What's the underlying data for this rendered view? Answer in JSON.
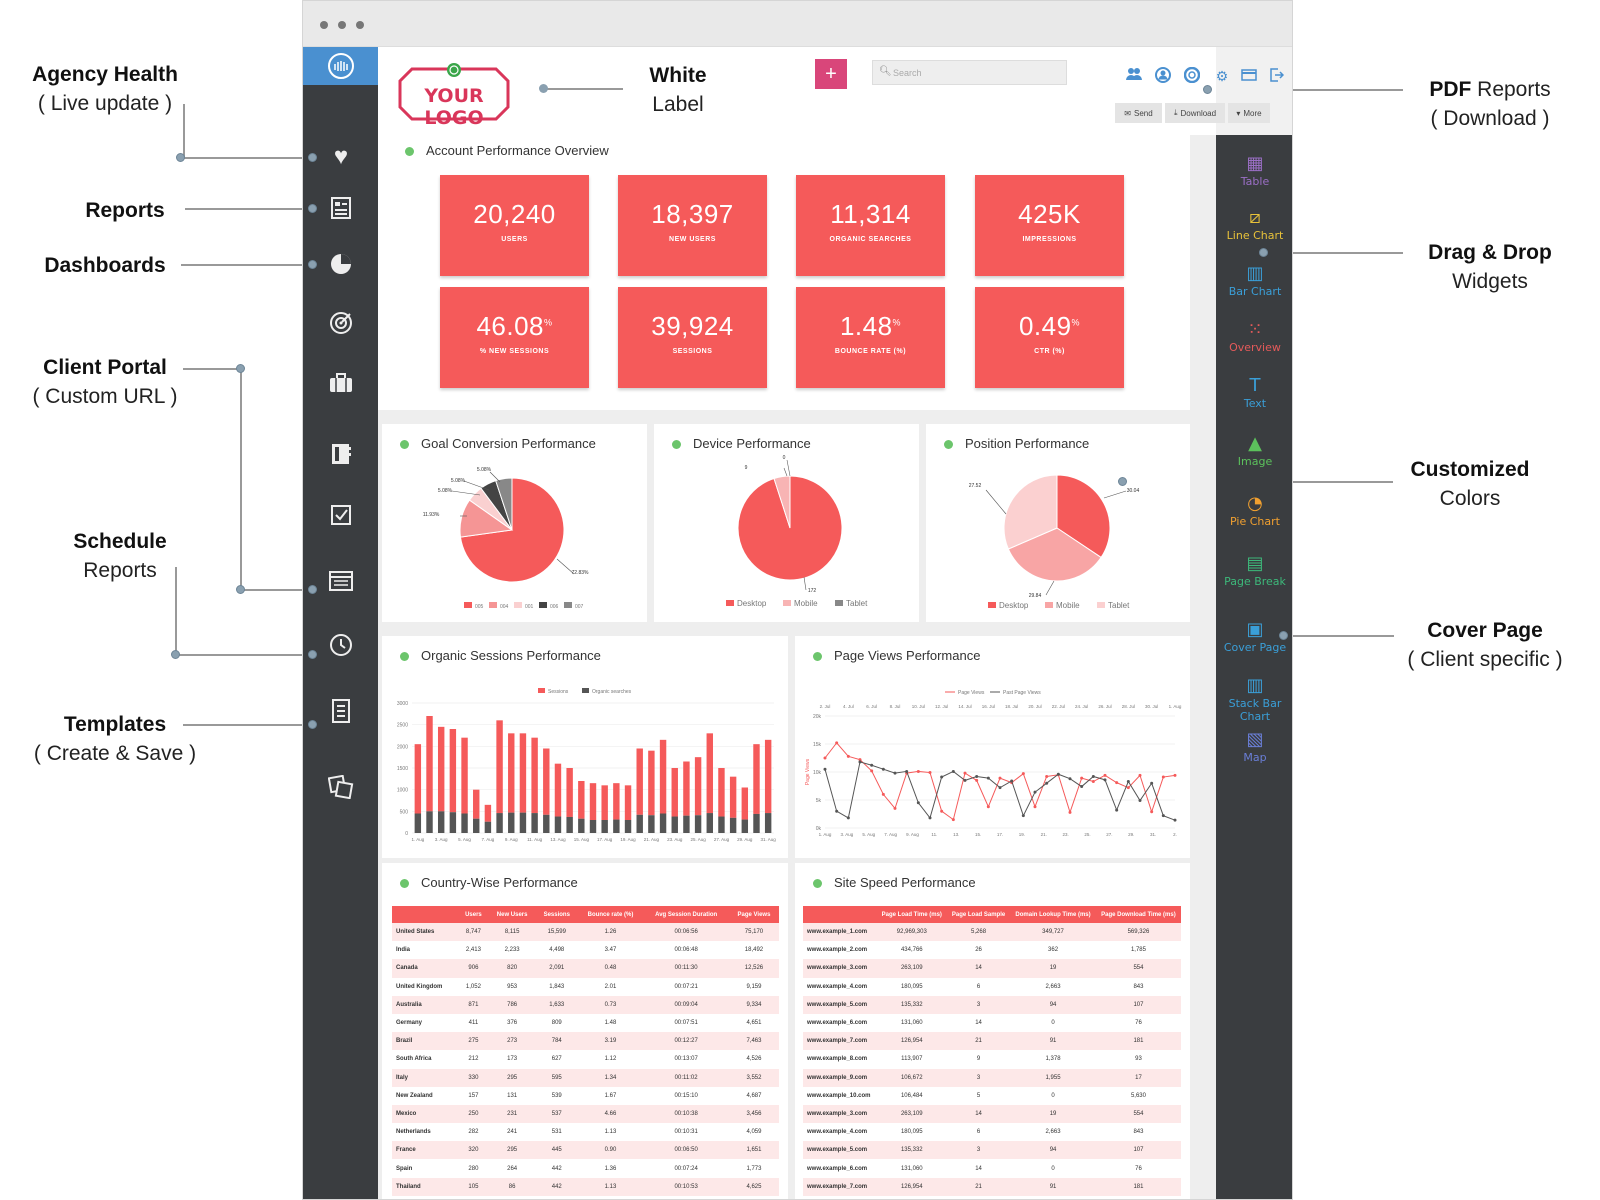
{
  "callouts": {
    "agency_health": {
      "bold": "Agency Health",
      "sub": "( Live update )"
    },
    "reports": {
      "bold": "Reports"
    },
    "dashboards": {
      "bold": "Dashboards"
    },
    "client_portal": {
      "bold": "Client Portal",
      "sub": "( Custom URL )"
    },
    "schedule": {
      "bold": "Schedule",
      "sub": "Reports"
    },
    "templates": {
      "bold": "Templates",
      "sub": "( Create & Save )"
    },
    "white_label": {
      "bold": "White",
      "sub": "Label"
    },
    "pdf_reports": {
      "bold": "PDF",
      "rest": " Reports",
      "sub": "( Download )"
    },
    "drag_drop": {
      "bold": "Drag & Drop",
      "sub": "Widgets"
    },
    "customized": {
      "bold": "Customized",
      "sub": "Colors"
    },
    "cover_page": {
      "bold": "Cover Page",
      "sub": "( Client specific )"
    }
  },
  "header": {
    "logo_text": "YOUR LOGO",
    "add_label": "+",
    "search_placeholder": "Search",
    "send_label": "Send",
    "download_label": "Download",
    "more_label": "More"
  },
  "widgets": [
    "Table",
    "Line Chart",
    "Bar Chart",
    "Overview",
    "Text",
    "Image",
    "Pie Chart",
    "Page Break",
    "Cover Page",
    "Stack Bar Chart",
    "Map"
  ],
  "widget_colors": [
    "#9b6fc6",
    "#e8c23a",
    "#3a9fd8",
    "#e45a5a",
    "#3a9fd8",
    "#5cc15c",
    "#f0a030",
    "#3db87a",
    "#3a9fd8",
    "#3a9fd8",
    "#6a7fd8"
  ],
  "overview": {
    "title": "Account Performance Overview",
    "kpis": [
      {
        "value": "20,240",
        "sup": "",
        "label": "USERS"
      },
      {
        "value": "18,397",
        "sup": "",
        "label": "NEW USERS"
      },
      {
        "value": "11,314",
        "sup": "",
        "label": "ORGANIC SEARCHES"
      },
      {
        "value": "425K",
        "sup": "",
        "label": "IMPRESSIONS"
      },
      {
        "value": "46.08",
        "sup": "%",
        "label": "% NEW SESSIONS"
      },
      {
        "value": "39,924",
        "sup": "",
        "label": "SESSIONS"
      },
      {
        "value": "1.48",
        "sup": "%",
        "label": "BOUNCE RATE (%)"
      },
      {
        "value": "0.49",
        "sup": "%",
        "label": "CTR (%)"
      }
    ]
  },
  "charts": {
    "goal": {
      "title": "Goal Conversion Performance"
    },
    "device": {
      "title": "Device Performance"
    },
    "position": {
      "title": "Position Performance"
    },
    "organic": {
      "title": "Organic Sessions Performance"
    },
    "pageviews": {
      "title": "Page Views Performance"
    }
  },
  "chart_data": [
    {
      "type": "pie",
      "title": "Goal Conversion Performance",
      "labels": [
        "005",
        "004",
        "001",
        "006",
        "007"
      ],
      "values": [
        72.83,
        11.93,
        5.08,
        5.08,
        5.08
      ],
      "value_labels": [
        "72.83%",
        "11.93%",
        "5.08%",
        "5.08%",
        "5.08%"
      ],
      "colors": [
        "#f55a5a",
        "#f59595",
        "#fad0d0",
        "#444444",
        "#888888"
      ],
      "legend": "bottom"
    },
    {
      "type": "pie",
      "title": "Device Performance",
      "labels": [
        "Desktop",
        "Mobile",
        "Tablet"
      ],
      "values": [
        172,
        9,
        0
      ],
      "colors": [
        "#f55a5a",
        "#f8b4b4",
        "#888888"
      ],
      "legend": "bottom"
    },
    {
      "type": "pie",
      "title": "Position Performance",
      "labels": [
        "Desktop",
        "Mobile",
        "Tablet"
      ],
      "values": [
        30.04,
        29.84,
        27.52
      ],
      "colors": [
        "#f55a5a",
        "#f8a5a5",
        "#fbd0d0"
      ],
      "legend": "bottom"
    },
    {
      "type": "bar",
      "title": "Organic Sessions Performance",
      "stacked": true,
      "x_ticks": [
        "1. Aug",
        "3. Aug",
        "5. Aug",
        "7. Aug",
        "9. Aug",
        "11. Aug",
        "13. Aug",
        "15. Aug",
        "17. Aug",
        "19. Aug",
        "21. Aug",
        "23. Aug",
        "25. Aug",
        "27. Aug",
        "29. Aug",
        "31. Aug"
      ],
      "y_ticks": [
        "3000",
        "2500",
        "2000",
        "1500",
        "1000",
        "500",
        "0"
      ],
      "ylim": [
        0,
        3000
      ],
      "series": [
        {
          "name": "Sessions",
          "color": "#f55a5a",
          "values": [
            2050,
            2700,
            2450,
            2400,
            2200,
            1000,
            650,
            2600,
            2300,
            2300,
            2200,
            1950,
            1600,
            1500,
            1200,
            1150,
            1100,
            1150,
            1100,
            1950,
            1900,
            2150,
            1500,
            1650,
            1750,
            2300,
            1500,
            1300,
            1050,
            2050,
            2150
          ]
        },
        {
          "name": "Organic searches",
          "color": "#555555",
          "values": [
            450,
            500,
            500,
            480,
            450,
            330,
            260,
            460,
            470,
            470,
            460,
            420,
            380,
            370,
            330,
            300,
            300,
            310,
            300,
            420,
            410,
            450,
            380,
            400,
            410,
            460,
            380,
            350,
            310,
            440,
            460
          ]
        }
      ],
      "legend": "top"
    },
    {
      "type": "line",
      "title": "Page Views Performance",
      "ylabel": "Page Views",
      "x_ticks_top": [
        "2. Jul",
        "4. Jul",
        "6. Jul",
        "8. Jul",
        "10. Jul",
        "12. Jul",
        "14. Jul",
        "16. Jul",
        "18. Jul",
        "20. Jul",
        "22. Jul",
        "24. Jul",
        "26. Jul",
        "28. Jul",
        "30. Jul",
        "1. Aug"
      ],
      "x_ticks": [
        "1. Aug",
        "3. Aug",
        "5. Aug",
        "7. Aug",
        "9. Aug",
        "11.",
        "13.",
        "15.",
        "17.",
        "19.",
        "21.",
        "23.",
        "25.",
        "27.",
        "29.",
        "31.",
        "2."
      ],
      "y_ticks": [
        "20k",
        "15k",
        "10k",
        "5k",
        "0k"
      ],
      "ylim": [
        0,
        20000
      ],
      "series": [
        {
          "name": "Page Views",
          "color": "#f55a5a",
          "values": [
            12500,
            15200,
            12800,
            12200,
            10200,
            6000,
            3500,
            9800,
            10100,
            9900,
            3000,
            1500,
            9800,
            8500,
            3800,
            8900,
            8100,
            9700,
            3800,
            9200,
            9500,
            2800,
            8900,
            8300,
            9400,
            8100,
            7200,
            9400,
            2900,
            9100,
            9400
          ]
        },
        {
          "name": "Past Page Views",
          "color": "#555555",
          "values": [
            10500,
            3000,
            1800,
            11800,
            11200,
            10500,
            9800,
            10100,
            4500,
            1800,
            9100,
            10100,
            8500,
            9200,
            8900,
            7200,
            8400,
            2200,
            6400,
            8000,
            9600,
            8800,
            7400,
            9200,
            8600,
            3200,
            8300,
            4900,
            8000,
            2200,
            1400
          ]
        }
      ],
      "legend": "top"
    }
  ],
  "country_table": {
    "title": "Country-Wise Performance",
    "columns": [
      "",
      "Users",
      "New Users",
      "Sessions",
      "Bounce rate (%)",
      "Avg Session Duration",
      "Page Views"
    ],
    "rows": [
      [
        "United States",
        "8,747",
        "8,115",
        "15,599",
        "1.26",
        "00:06:56",
        "75,170"
      ],
      [
        "India",
        "2,413",
        "2,233",
        "4,498",
        "3.47",
        "00:06:48",
        "18,492"
      ],
      [
        "Canada",
        "906",
        "820",
        "2,091",
        "0.48",
        "00:11:30",
        "12,526"
      ],
      [
        "United Kingdom",
        "1,052",
        "953",
        "1,843",
        "2.01",
        "00:07:21",
        "9,159"
      ],
      [
        "Australia",
        "871",
        "786",
        "1,633",
        "0.73",
        "00:09:04",
        "9,334"
      ],
      [
        "Germany",
        "411",
        "376",
        "809",
        "1.48",
        "00:07:51",
        "4,651"
      ],
      [
        "Brazil",
        "275",
        "273",
        "784",
        "3.19",
        "00:12:27",
        "7,463"
      ],
      [
        "South Africa",
        "212",
        "173",
        "627",
        "1.12",
        "00:13:07",
        "4,526"
      ],
      [
        "Italy",
        "330",
        "295",
        "595",
        "1.34",
        "00:11:02",
        "3,552"
      ],
      [
        "New Zealand",
        "157",
        "131",
        "539",
        "1.67",
        "00:15:10",
        "4,687"
      ],
      [
        "Mexico",
        "250",
        "231",
        "537",
        "4.66",
        "00:10:38",
        "3,456"
      ],
      [
        "Netherlands",
        "282",
        "241",
        "531",
        "1.13",
        "00:10:31",
        "4,059"
      ],
      [
        "France",
        "320",
        "295",
        "445",
        "0.90",
        "00:06:50",
        "1,651"
      ],
      [
        "Spain",
        "280",
        "264",
        "442",
        "1.36",
        "00:07:24",
        "1,773"
      ],
      [
        "Thailand",
        "105",
        "86",
        "442",
        "1.13",
        "00:10:53",
        "4,625"
      ]
    ]
  },
  "speed_table": {
    "title": "Site Speed Performance",
    "columns": [
      "",
      "Page Load Time (ms)",
      "Page Load Sample",
      "Domain Lookup Time (ms)",
      "Page Download Time (ms)"
    ],
    "rows": [
      [
        "www.example_1.com",
        "92,969,303",
        "5,268",
        "349,727",
        "569,326"
      ],
      [
        "www.example_2.com",
        "434,766",
        "26",
        "362",
        "1,785"
      ],
      [
        "www.example_3.com",
        "263,109",
        "14",
        "19",
        "554"
      ],
      [
        "www.example_4.com",
        "180,095",
        "6",
        "2,663",
        "843"
      ],
      [
        "www.example_5.com",
        "135,332",
        "3",
        "94",
        "107"
      ],
      [
        "www.example_6.com",
        "131,060",
        "14",
        "0",
        "76"
      ],
      [
        "www.example_7.com",
        "126,954",
        "21",
        "91",
        "181"
      ],
      [
        "www.example_8.com",
        "113,907",
        "9",
        "1,378",
        "93"
      ],
      [
        "www.example_9.com",
        "106,672",
        "3",
        "1,955",
        "17"
      ],
      [
        "www.example_10.com",
        "106,484",
        "5",
        "0",
        "5,630"
      ],
      [
        "www.example_3.com",
        "263,109",
        "14",
        "19",
        "554"
      ],
      [
        "www.example_4.com",
        "180,095",
        "6",
        "2,663",
        "843"
      ],
      [
        "www.example_5.com",
        "135,332",
        "3",
        "94",
        "107"
      ],
      [
        "www.example_6.com",
        "131,060",
        "14",
        "0",
        "76"
      ],
      [
        "www.example_7.com",
        "126,954",
        "21",
        "91",
        "181"
      ],
      [
        "www.example_8.com",
        "113,907",
        "9",
        "1,378",
        "93"
      ]
    ]
  }
}
